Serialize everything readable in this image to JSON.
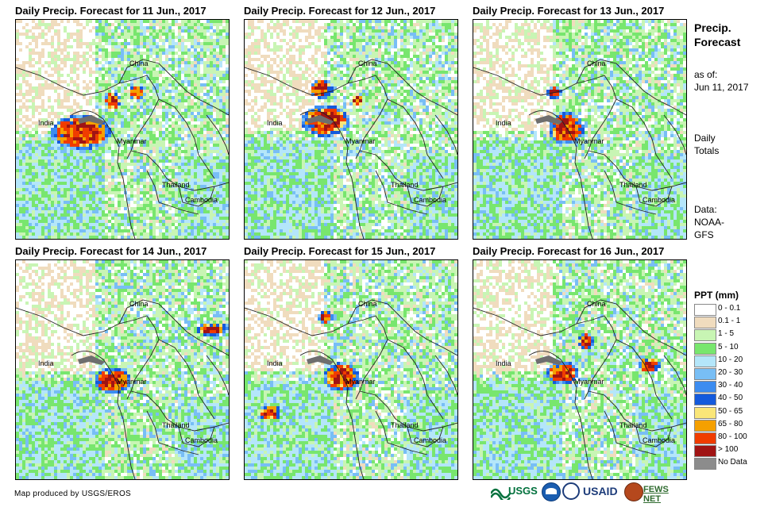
{
  "panels": [
    {
      "title": "Daily Precip. Forecast for 11 Jun., 2017",
      "labels": {
        "china": "China",
        "india": "India",
        "myanmar": "Myanmar",
        "thailand": "Thailand",
        "cambodia": "Cambodia"
      },
      "heavy_rain_region": "Bay of Bengal / Bangladesh coast"
    },
    {
      "title": "Daily Precip. Forecast for 12 Jun., 2017",
      "labels": {
        "china": "China",
        "india": "India",
        "myanmar": "Myanmar",
        "thailand": "Thailand",
        "cambodia": "Cambodia"
      },
      "heavy_rain_region": "Bangladesh / NE India"
    },
    {
      "title": "Daily Precip. Forecast for 13 Jun., 2017",
      "labels": {
        "china": "China",
        "india": "India",
        "myanmar": "Myanmar",
        "thailand": "Thailand",
        "cambodia": "Cambodia"
      },
      "heavy_rain_region": "Myanmar coast"
    },
    {
      "title": "Daily Precip. Forecast for 14 Jun., 2017",
      "labels": {
        "china": "China",
        "india": "India",
        "myanmar": "Myanmar",
        "thailand": "Thailand",
        "cambodia": "Cambodia"
      },
      "heavy_rain_region": "Myanmar coast / South China"
    },
    {
      "title": "Daily Precip. Forecast for 15 Jun., 2017",
      "labels": {
        "china": "China",
        "india": "India",
        "myanmar": "Myanmar",
        "thailand": "Thailand",
        "cambodia": "Cambodia"
      },
      "heavy_rain_region": "Myanmar coast"
    },
    {
      "title": "Daily Precip. Forecast for 16 Jun., 2017",
      "labels": {
        "china": "China",
        "india": "India",
        "myanmar": "Myanmar",
        "thailand": "Thailand",
        "cambodia": "Cambodia"
      },
      "heavy_rain_region": "Bangladesh / Myanmar"
    }
  ],
  "sidebar": {
    "title_line1": "Precip.",
    "title_line2": "Forecast",
    "asof_line1": "as of:",
    "asof_line2": "Jun 11, 2017",
    "daily_line1": "Daily",
    "daily_line2": "Totals",
    "data_line1": "Data:",
    "data_line2": "NOAA-",
    "data_line3": "GFS"
  },
  "legend": {
    "title": "PPT (mm)",
    "items": [
      {
        "label": "0 - 0.1",
        "color": "#ffffff"
      },
      {
        "label": "0.1 - 1",
        "color": "#f0dcbe"
      },
      {
        "label": "1 - 5",
        "color": "#c8f5b4"
      },
      {
        "label": "5 - 10",
        "color": "#78e66e"
      },
      {
        "label": "10 - 20",
        "color": "#b4e6fa"
      },
      {
        "label": "20 - 30",
        "color": "#78bef5"
      },
      {
        "label": "30 - 40",
        "color": "#3c8cf0"
      },
      {
        "label": "40 - 50",
        "color": "#145adc"
      },
      {
        "label": "50 - 65",
        "color": "#fae678"
      },
      {
        "label": "65 - 80",
        "color": "#f5a000"
      },
      {
        "label": "80 - 100",
        "color": "#f03c00"
      },
      {
        "label": "> 100",
        "color": "#a01414"
      },
      {
        "label": "No Data",
        "color": "#8c8c8c"
      }
    ]
  },
  "footer": {
    "credit": "Map produced by USGS/EROS"
  },
  "logos": {
    "usgs": "USGS",
    "usaid": "USAID",
    "fewsnet": "FEWS NET"
  }
}
